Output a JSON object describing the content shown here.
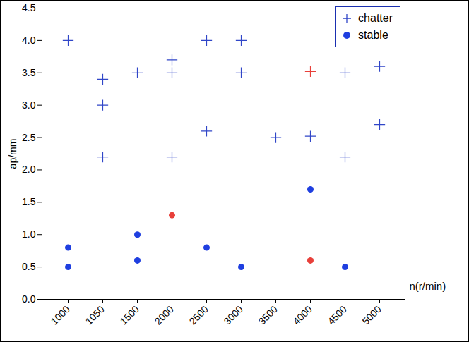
{
  "chart_data": {
    "type": "scatter",
    "x_label": "n(r/min)",
    "y_label": "ap/mm",
    "categories": [
      1000,
      1050,
      1500,
      2000,
      2500,
      3000,
      3500,
      4000,
      4500,
      5000
    ],
    "ylim": [
      0,
      4.5
    ],
    "yticks": [
      {
        "value": 0,
        "label": "0.0"
      },
      {
        "value": 0.5,
        "label": "0.5"
      },
      {
        "value": 1,
        "label": "1.0"
      },
      {
        "value": 1.5,
        "label": "1.5"
      },
      {
        "value": 2,
        "label": "2.0"
      },
      {
        "value": 2.5,
        "label": "2.5"
      },
      {
        "value": 3,
        "label": "3.0"
      },
      {
        "value": 3.5,
        "label": "3.5"
      },
      {
        "value": 4,
        "label": "4.0"
      },
      {
        "value": 4.5,
        "label": "4.5"
      }
    ],
    "legend": "upper right",
    "series": [
      {
        "name": "chatter",
        "marker": "plus",
        "color": "#3046c8",
        "x": [
          1000,
          1050,
          1050,
          1050,
          1500,
          2000,
          2000,
          2000,
          2500,
          2500,
          3000,
          3000,
          3500,
          4000,
          4000,
          4500,
          4500,
          5000,
          5000
        ],
        "values": [
          4.0,
          3.4,
          3.0,
          2.2,
          3.5,
          3.7,
          3.5,
          2.2,
          4.0,
          2.6,
          4.0,
          3.5,
          2.5,
          2.52,
          3.52,
          3.5,
          2.2,
          3.6,
          2.7
        ],
        "colors": [
          "#3046c8",
          "#3046c8",
          "#3046c8",
          "#3046c8",
          "#3046c8",
          "#3046c8",
          "#3046c8",
          "#3046c8",
          "#3046c8",
          "#3046c8",
          "#3046c8",
          "#3046c8",
          "#3046c8",
          "#3046c8",
          "#e8403a",
          "#3046c8",
          "#3046c8",
          "#3046c8",
          "#3046c8"
        ]
      },
      {
        "name": "stable",
        "marker": "circle",
        "color": "#1f3fe0",
        "x": [
          1000,
          1000,
          1500,
          1500,
          2000,
          2500,
          3000,
          4000,
          4000,
          4500
        ],
        "values": [
          0.5,
          0.8,
          0.6,
          1.0,
          1.3,
          0.8,
          0.5,
          1.7,
          0.6,
          0.5
        ],
        "colors": [
          "#1f3fe0",
          "#1f3fe0",
          "#1f3fe0",
          "#1f3fe0",
          "#e8403a",
          "#1f3fe0",
          "#1f3fe0",
          "#1f3fe0",
          "#e8403a",
          "#1f3fe0"
        ]
      }
    ]
  }
}
